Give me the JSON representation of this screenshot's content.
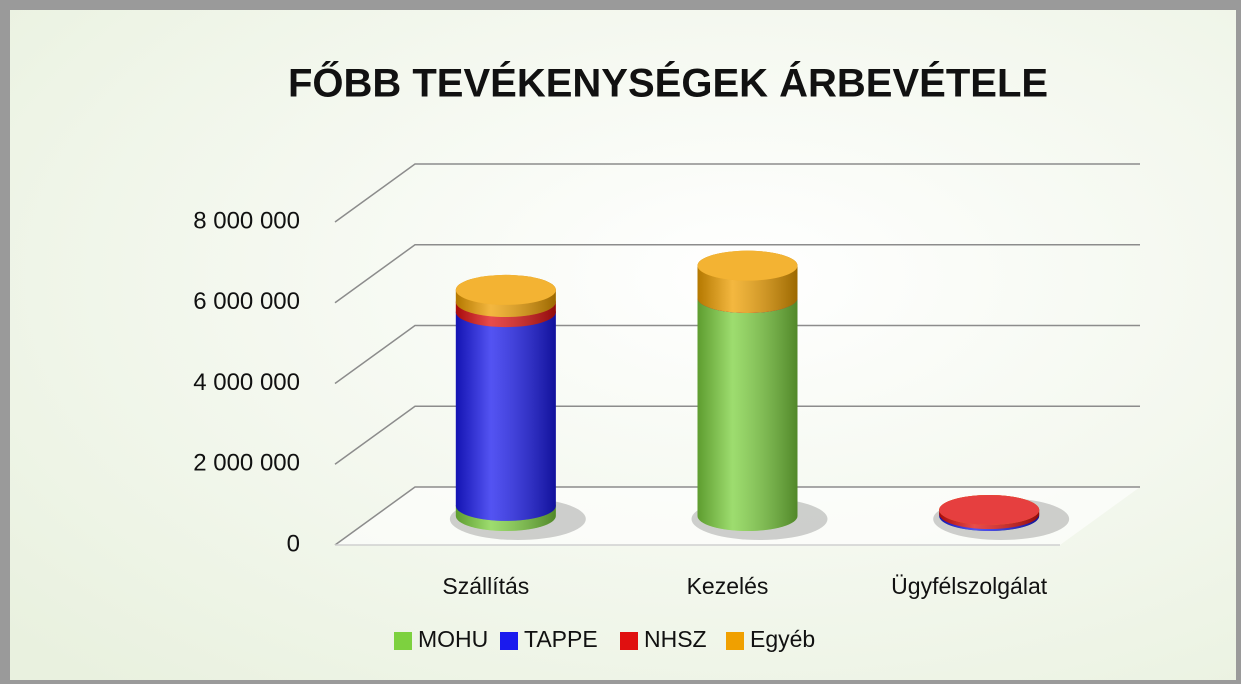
{
  "chart_data": {
    "type": "bar3d_stacked",
    "title": "FŐBB TEVÉKENYSÉGEK ÁRBEVÉTELE",
    "categories": [
      "Szállítás",
      "Kezelés",
      "Ügyfélszolgálat"
    ],
    "series": [
      {
        "name": "MOHU",
        "color": "#7dd13f",
        "values": [
          250000,
          5400000,
          0
        ]
      },
      {
        "name": "TAPPE",
        "color": "#1a1aee",
        "values": [
          4800000,
          0,
          50000
        ]
      },
      {
        "name": "NHSZ",
        "color": "#e01010",
        "values": [
          250000,
          0,
          100000
        ]
      },
      {
        "name": "Egyéb",
        "color": "#f0a000",
        "values": [
          300000,
          800000,
          0
        ]
      }
    ],
    "ylim": [
      0,
      8000000
    ],
    "yticks": [
      0,
      {
        "value": 2000000,
        "label": "2 000 000"
      },
      {
        "value": 4000000,
        "label": "4 000 000"
      },
      {
        "value": 6000000,
        "label": "6 000 000"
      },
      {
        "value": 8000000,
        "label": "8 000 000"
      }
    ],
    "grid": true,
    "legend": "bottom"
  }
}
